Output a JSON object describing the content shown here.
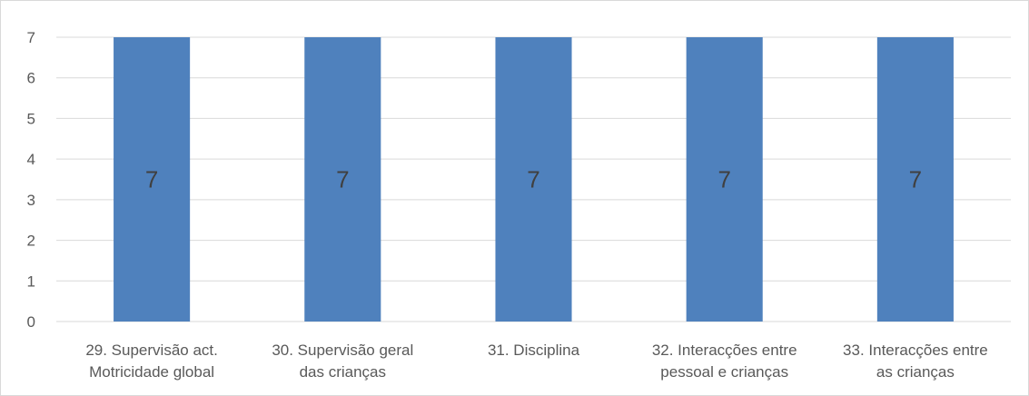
{
  "chart_data": {
    "type": "bar",
    "title": "",
    "xlabel": "",
    "ylabel": "",
    "categories": [
      [
        "29. Supervisão act.",
        "Motricidade global"
      ],
      [
        "30. Supervisão geral",
        "das crianças"
      ],
      [
        "31. Disciplina"
      ],
      [
        "32. Interacções entre",
        "pessoal e crianças"
      ],
      [
        "33. Interacções entre",
        "as crianças"
      ]
    ],
    "series": [
      {
        "values": [
          7,
          7,
          7,
          7,
          7
        ],
        "color": "#4f81bd",
        "data_labels": [
          "7",
          "7",
          "7",
          "7",
          "7"
        ]
      }
    ],
    "ylim": [
      0,
      7
    ],
    "yticks": [
      "0",
      "1",
      "2",
      "3",
      "4",
      "5",
      "6",
      "7"
    ],
    "grid": true,
    "legend": "none",
    "gridline_color": "#d9d9d9",
    "text_color": "#595959"
  }
}
